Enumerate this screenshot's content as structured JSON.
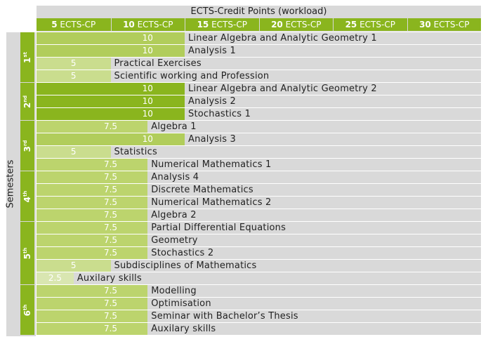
{
  "chart_data": {
    "type": "bar",
    "orientation": "horizontal",
    "title": "ECTS-Credit Points (workload)",
    "ylabel": "Semesters",
    "x_ticks": [
      {
        "value": 5,
        "bold": "5",
        "rest": " ECTS-CP"
      },
      {
        "value": 10,
        "bold": "10",
        "rest": " ECTS-CP"
      },
      {
        "value": 15,
        "bold": "15",
        "rest": " ECTS-CP"
      },
      {
        "value": 20,
        "bold": "20",
        "rest": " ECTS-CP"
      },
      {
        "value": 25,
        "bold": "25",
        "rest": " ECTS-CP"
      },
      {
        "value": 30,
        "bold": "30",
        "rest": " ECTS-CP"
      }
    ],
    "xlim": [
      0,
      30
    ],
    "semesters": [
      {
        "num": "1",
        "suffix": "st"
      },
      {
        "num": "2",
        "suffix": "nd"
      },
      {
        "num": "3",
        "suffix": "rd"
      },
      {
        "num": "4",
        "suffix": "th"
      },
      {
        "num": "5",
        "suffix": "th"
      },
      {
        "num": "6",
        "suffix": "th"
      }
    ],
    "courses": [
      {
        "semester": 0,
        "name": "Linear Algebra and Analytic Geometry 1",
        "value": 10,
        "value_label": "10"
      },
      {
        "semester": 0,
        "name": "Analysis 1",
        "value": 10,
        "value_label": "10"
      },
      {
        "semester": 0,
        "name": "Practical Exercises",
        "value": 5,
        "value_label": "5"
      },
      {
        "semester": 0,
        "name": "Scientific working and Profession",
        "value": 5,
        "value_label": "5"
      },
      {
        "semester": 1,
        "name": "Linear Algebra and Analytic Geometry 2",
        "value": 10,
        "value_label": "10"
      },
      {
        "semester": 1,
        "name": "Analysis 2",
        "value": 10,
        "value_label": "10"
      },
      {
        "semester": 1,
        "name": "Stochastics 1",
        "value": 10,
        "value_label": "10"
      },
      {
        "semester": 2,
        "name": "Algebra 1",
        "value": 7.5,
        "value_label": "7.5"
      },
      {
        "semester": 2,
        "name": "Analysis 3",
        "value": 10,
        "value_label": "10"
      },
      {
        "semester": 2,
        "name": "Statistics",
        "value": 5,
        "value_label": "5"
      },
      {
        "semester": 2,
        "name": "Numerical Mathematics 1",
        "value": 7.5,
        "value_label": "7.5"
      },
      {
        "semester": 3,
        "name": "Analysis 4",
        "value": 7.5,
        "value_label": "7.5"
      },
      {
        "semester": 3,
        "name": "Discrete Mathematics",
        "value": 7.5,
        "value_label": "7.5"
      },
      {
        "semester": 3,
        "name": "Numerical Mathematics 2",
        "value": 7.5,
        "value_label": "7.5"
      },
      {
        "semester": 3,
        "name": "Algebra 2",
        "value": 7.5,
        "value_label": "7.5"
      },
      {
        "semester": 4,
        "name": "Partial Differential Equations",
        "value": 7.5,
        "value_label": "7.5"
      },
      {
        "semester": 4,
        "name": "Geometry",
        "value": 7.5,
        "value_label": "7.5"
      },
      {
        "semester": 4,
        "name": "Stochastics 2",
        "value": 7.5,
        "value_label": "7.5"
      },
      {
        "semester": 4,
        "name": "Subdisciplines of Mathematics",
        "value": 5,
        "value_label": "5"
      },
      {
        "semester": 4,
        "name": "Auxilary skills",
        "value": 2.5,
        "value_label": "2.5"
      },
      {
        "semester": 5,
        "name": "Modelling",
        "value": 7.5,
        "value_label": "7.5"
      },
      {
        "semester": 5,
        "name": "Optimisation",
        "value": 7.5,
        "value_label": "7.5"
      },
      {
        "semester": 5,
        "name": "Seminar with Bachelor’s Thesis",
        "value": 7.5,
        "value_label": "7.5"
      },
      {
        "semester": 5,
        "name": "Auxilary skills",
        "value": 7.5,
        "value_label": "7.5"
      }
    ],
    "colors": {
      "header_green": "#8ab51e",
      "bar_dark": "#8ab51e",
      "bar_10": "#b1cd5b",
      "bar_7_5": "#bcd46d",
      "bar_5": "#cadd8e",
      "bar_2_5": "#d9e6b1",
      "track": "#d9d9d9",
      "separator": "#ffffff"
    },
    "grid": false,
    "legend": "none"
  }
}
